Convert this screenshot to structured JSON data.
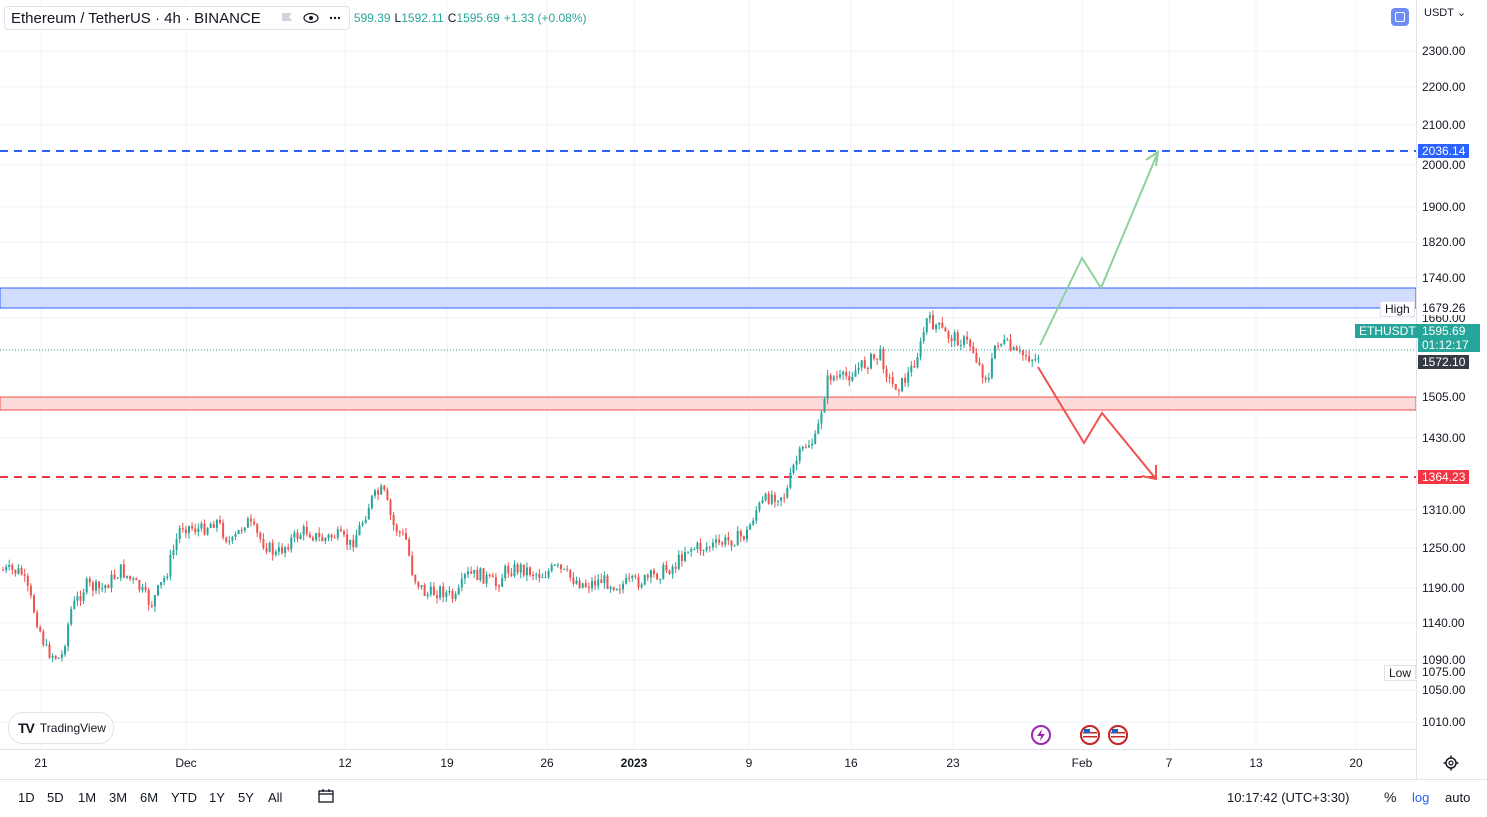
{
  "legend": {
    "title": "Ethereum / TetherUS · 4h · BINANCE",
    "ohlc_text": "599.39",
    "low_key": "L",
    "low_value": "1592.11",
    "close_key": "C",
    "close_value": "1595.69",
    "change": "+1.33 (+0.08%)"
  },
  "currency": "USDT",
  "price_axis": [
    "2300.00",
    "2200.00",
    "2100.00",
    "2000.00",
    "1900.00",
    "1820.00",
    "1740.00",
    "1660.00",
    "1505.00",
    "1430.00",
    "1310.00",
    "1250.00",
    "1190.00",
    "1140.00",
    "1090.00",
    "1050.00",
    "1010.00"
  ],
  "markers": {
    "target_up": "2036.14",
    "high_label": "High",
    "high_value": "1679.26",
    "symbol": "ETHUSDT",
    "last_price": "1595.69",
    "countdown": "01:12:17",
    "prev_price": "1572.10",
    "target_down": "1364.23",
    "low_label": "Low",
    "low_value": "1075.00"
  },
  "time_axis": [
    "21",
    "Dec",
    "12",
    "19",
    "26",
    "2023",
    "9",
    "16",
    "23",
    "Feb",
    "7",
    "13",
    "20"
  ],
  "range_buttons": [
    "1D",
    "5D",
    "1M",
    "3M",
    "6M",
    "YTD",
    "1Y",
    "5Y",
    "All"
  ],
  "clock": "10:17:42 (UTC+3:30)",
  "bottom_right": {
    "percent": "%",
    "log": "log",
    "auto": "auto"
  },
  "logo_text": "TradingView",
  "colors": {
    "up": "#26a69a",
    "down": "#ef5350",
    "blue": "#2962ff",
    "red_line": "#f23645",
    "green_arrow": "#8fd09b"
  }
}
